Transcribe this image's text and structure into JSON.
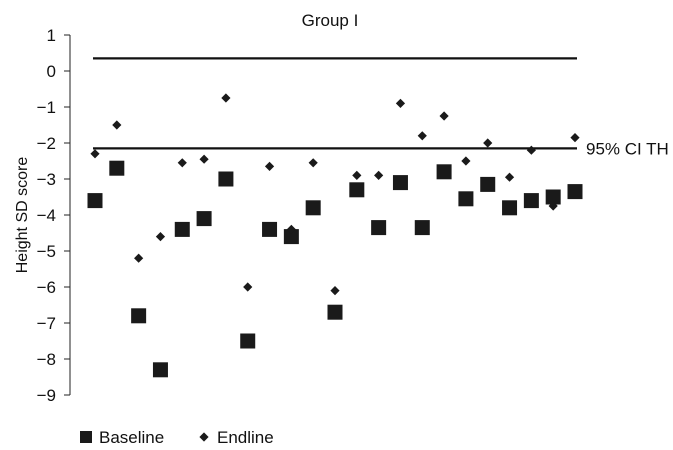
{
  "chart_data": {
    "type": "scatter",
    "title": "Group I",
    "xlabel": "",
    "ylabel": "Height SD score",
    "ylim": [
      -9,
      1
    ],
    "yticks": [
      1,
      0,
      -1,
      -2,
      -3,
      -4,
      -5,
      -6,
      -7,
      -8,
      -9
    ],
    "ytick_labels": [
      "1",
      "0",
      "−1",
      "−2",
      "−3",
      "−4",
      "−5",
      "−6",
      "−7",
      "−8",
      "−9"
    ],
    "grid": false,
    "legend_position": "bottom-left",
    "x": [
      1,
      2,
      3,
      4,
      5,
      6,
      7,
      8,
      9,
      10,
      11,
      12,
      13,
      14,
      15,
      16,
      17,
      18,
      19,
      20,
      21,
      22,
      23
    ],
    "series": [
      {
        "name": "Baseline",
        "marker": "square",
        "color": "#1a1a1a",
        "values": [
          -3.6,
          -2.7,
          -6.8,
          -8.3,
          -4.4,
          -4.1,
          -3.0,
          -7.5,
          -4.4,
          -4.6,
          -3.8,
          -6.7,
          -3.3,
          -4.35,
          -3.1,
          -4.35,
          -2.8,
          -3.55,
          -3.15,
          -3.8,
          -3.6,
          -3.5,
          -3.35
        ]
      },
      {
        "name": "Endline",
        "marker": "diamond",
        "color": "#1a1a1a",
        "values": [
          -2.3,
          -1.5,
          -5.2,
          -4.6,
          -2.55,
          -2.45,
          -0.75,
          -6.0,
          -2.65,
          -4.4,
          -2.55,
          -6.1,
          -2.9,
          -2.9,
          -0.9,
          -1.8,
          -1.25,
          -2.5,
          -2.0,
          -2.95,
          -2.2,
          -3.75,
          -1.85
        ]
      }
    ],
    "reference_lines": [
      {
        "value": 0.35,
        "label": ""
      },
      {
        "value": -2.15,
        "label": "95% CI TH"
      }
    ]
  }
}
